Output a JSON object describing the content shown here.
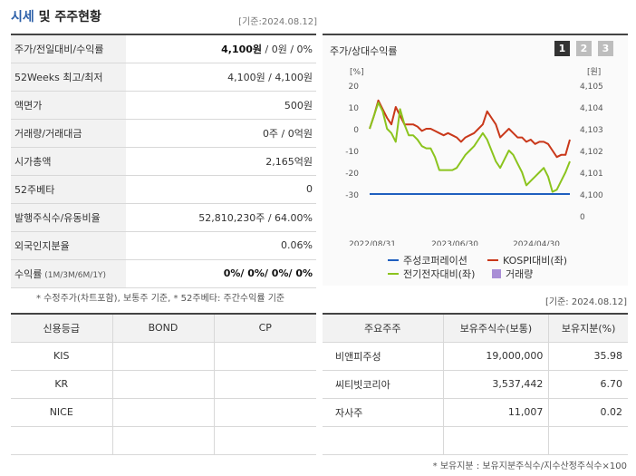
{
  "header": {
    "title_main": "시세",
    "title_rest": " 및 주주현황",
    "date": "[기준:2024.08.12]"
  },
  "price_rows": [
    {
      "label": "주가/전일대비/수익률",
      "value_bold": "4,100원",
      "value_rest": " / 0원 / 0%"
    },
    {
      "label": "52Weeks 최고/최저",
      "value_bold": "",
      "value_rest": "4,100원 / 4,100원"
    },
    {
      "label": "액면가",
      "value_bold": "",
      "value_rest": "500원"
    },
    {
      "label": "거래량/거래대금",
      "value_bold": "",
      "value_rest": "0주 / 0억원"
    },
    {
      "label": "시가총액",
      "value_bold": "",
      "value_rest": "2,165억원"
    },
    {
      "label": "52주베타",
      "value_bold": "",
      "value_rest": "0"
    },
    {
      "label": "발행주식수/유동비율",
      "value_bold": "",
      "value_rest": "52,810,230주 / 64.00%"
    },
    {
      "label": "외국인지분율",
      "value_bold": "",
      "value_rest": "0.06%"
    },
    {
      "label": "수익률",
      "label_small": " (1M/3M/6M/1Y)",
      "value_bold": "0%/ 0%/ 0%/ 0%",
      "value_rest": ""
    }
  ],
  "price_note": "* 수정주가(차트포함), 보통주 기준, * 52주베타: 주간수익률 기준",
  "chart_panel": {
    "title": "주가/상대수익률",
    "pages": [
      "1",
      "2",
      "3"
    ]
  },
  "chart_data": {
    "type": "line",
    "left_unit": "[%]",
    "right_unit": "[원]",
    "left_ticks": [
      "20",
      "10",
      "0",
      "-10",
      "-20",
      "-30"
    ],
    "right_ticks": [
      "4,105",
      "4,104",
      "4,103",
      "4,102",
      "4,101",
      "4,100",
      "0"
    ],
    "ylim": [
      -30,
      20
    ],
    "x_labels": [
      "2022/08/31",
      "2023/06/30",
      "2024/04/30"
    ],
    "series": [
      {
        "name": "주성코퍼레이션",
        "color": "#1f5fbf",
        "values": [
          -30,
          -30,
          -30,
          -30,
          -30,
          -30,
          -30,
          -30,
          -30,
          -30,
          -30,
          -30,
          -30,
          -30,
          -30,
          -30,
          -30,
          -30,
          -30,
          -30,
          -30,
          -30,
          -30,
          -30,
          -30,
          -30,
          -30,
          -30,
          -30,
          -30,
          -30,
          -30,
          -30,
          -30,
          -30,
          -30,
          -30,
          -30,
          -30,
          -30,
          -30,
          -30,
          -30,
          -30,
          -30,
          -30,
          -30
        ]
      },
      {
        "name": "KOSPI대비(좌)",
        "color": "#c9381a",
        "values": [
          0,
          6,
          13,
          9,
          5,
          2,
          10,
          6,
          2,
          2,
          2,
          1,
          -1,
          0,
          0,
          -1,
          -2,
          -3,
          -2,
          -3,
          -4,
          -6,
          -4,
          -3,
          -2,
          0,
          2,
          8,
          5,
          2,
          -4,
          -2,
          0,
          -2,
          -4,
          -4,
          -6,
          -5,
          -7,
          -6,
          -6,
          -7,
          -10,
          -13,
          -12,
          -12,
          -5
        ]
      },
      {
        "name": "전기전자대비(좌)",
        "color": "#8bc41e",
        "values": [
          0,
          6,
          12,
          8,
          0,
          -2,
          -6,
          9,
          2,
          -3,
          -3,
          -5,
          -8,
          -9,
          -9,
          -13,
          -19,
          -19,
          -19,
          -19,
          -18,
          -15,
          -12,
          -10,
          -8,
          -5,
          -2,
          -5,
          -10,
          -15,
          -18,
          -14,
          -10,
          -12,
          -16,
          -20,
          -26,
          -24,
          -22,
          -20,
          -18,
          -22,
          -29,
          -28,
          -24,
          -20,
          -15
        ]
      },
      {
        "name": "거래량",
        "color": "#a98ed6",
        "values": []
      }
    ]
  },
  "chart_date": "[기준: 2024.08.12]",
  "credit": {
    "headers": [
      "신용등급",
      "BOND",
      "CP"
    ],
    "rows": [
      [
        "KIS",
        "",
        ""
      ],
      [
        "KR",
        "",
        ""
      ],
      [
        "NICE",
        "",
        ""
      ],
      [
        "",
        "",
        ""
      ]
    ]
  },
  "holders": {
    "headers": [
      "주요주주",
      "보유주식수(보통)",
      "보유지분(%)"
    ],
    "rows": [
      [
        "비앤피주성",
        "19,000,000",
        "35.98"
      ],
      [
        "씨티빗코리아",
        "3,537,442",
        "6.70"
      ],
      [
        "자사주",
        "11,007",
        "0.02"
      ],
      [
        "",
        "",
        ""
      ]
    ],
    "note": "* 보유지분 : 보유지분주식수/지수산정주식수×100"
  }
}
